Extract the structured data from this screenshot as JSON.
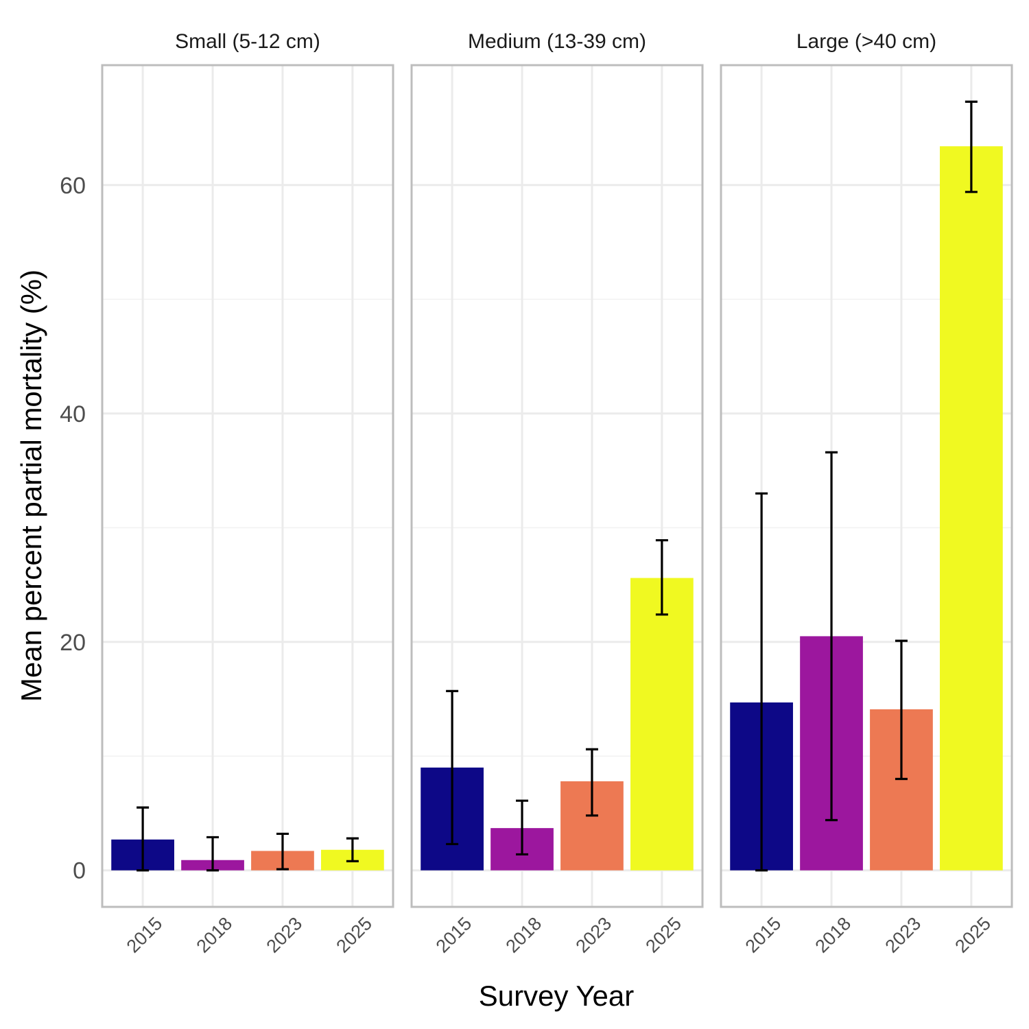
{
  "chart_data": {
    "type": "bar",
    "ylabel": "Mean percent partial mortality (%)",
    "xlabel": "Survey Year",
    "ylim": [
      -3.2,
      70.5
    ],
    "y_ticks": [
      0,
      20,
      40,
      60
    ],
    "y_minor_ticks": [
      10,
      30,
      50
    ],
    "grid": true,
    "legend": "none",
    "categories": [
      "2015",
      "2018",
      "2023",
      "2025"
    ],
    "colors": [
      "#0d0887",
      "#9c179e",
      "#ed7953",
      "#f0f921"
    ],
    "facets": [
      {
        "title": "Small (5-12 cm)",
        "values": [
          2.7,
          0.9,
          1.7,
          1.8
        ],
        "err_low": [
          0.0,
          0.0,
          0.1,
          0.8
        ],
        "err_high": [
          5.5,
          2.9,
          3.2,
          2.8
        ]
      },
      {
        "title": "Medium (13-39 cm)",
        "values": [
          9.0,
          3.7,
          7.8,
          25.6
        ],
        "err_low": [
          2.3,
          1.4,
          4.8,
          22.4
        ],
        "err_high": [
          15.7,
          6.1,
          10.6,
          28.9
        ]
      },
      {
        "title": "Large (>40 cm)",
        "values": [
          14.7,
          20.5,
          14.1,
          63.4
        ],
        "err_low": [
          0.0,
          4.4,
          8.0,
          59.4
        ],
        "err_high": [
          33.0,
          36.6,
          20.1,
          67.3
        ]
      }
    ]
  }
}
